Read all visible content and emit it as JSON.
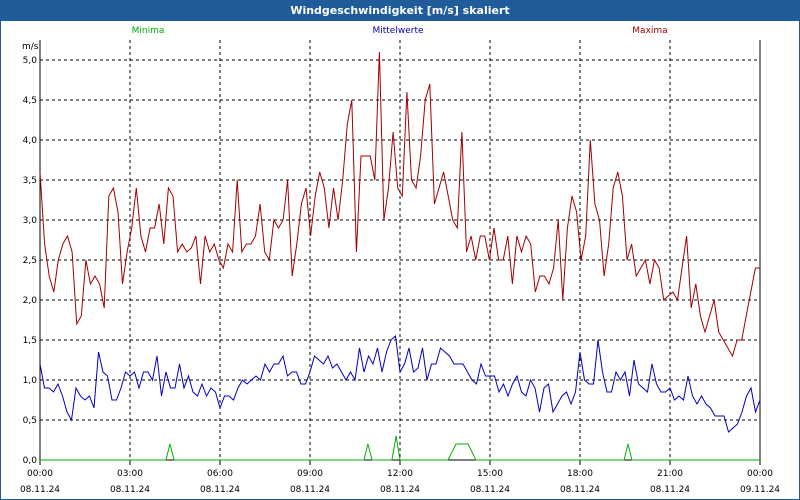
{
  "title": "Windgeschwindigkeit [m/s] skaliert",
  "chart_data": {
    "type": "line",
    "ylabel": "m/s",
    "ylim": [
      0,
      5.25
    ],
    "yticks": [
      "0,0",
      "0,5",
      "1,0",
      "1,5",
      "2,0",
      "2,5",
      "3,0",
      "3,5",
      "4,0",
      "4,5",
      "5,0"
    ],
    "ytick_values": [
      0,
      0.5,
      1.0,
      1.5,
      2.0,
      2.5,
      3.0,
      3.5,
      4.0,
      4.5,
      5.0
    ],
    "xticks": [
      {
        "time": "00:00",
        "date": "08.11.24",
        "hour": 0
      },
      {
        "time": "03:00",
        "date": "08.11.24",
        "hour": 3
      },
      {
        "time": "06:00",
        "date": "08.11.24",
        "hour": 6
      },
      {
        "time": "09:00",
        "date": "08.11.24",
        "hour": 9
      },
      {
        "time": "12:00",
        "date": "08.11.24",
        "hour": 12
      },
      {
        "time": "15:00",
        "date": "08.11.24",
        "hour": 15
      },
      {
        "time": "18:00",
        "date": "08.11.24",
        "hour": 18
      },
      {
        "time": "21:00",
        "date": "08.11.24",
        "hour": 21
      },
      {
        "time": "00:00",
        "date": "09.11.24",
        "hour": 24
      }
    ],
    "grid": true,
    "legend": "top",
    "series": [
      {
        "name": "Minima",
        "color": "#00b000",
        "points": [
          [
            0,
            0
          ],
          [
            4.2,
            0
          ],
          [
            4.33,
            0.2
          ],
          [
            4.47,
            0
          ],
          [
            10.8,
            0
          ],
          [
            10.93,
            0.2
          ],
          [
            11.07,
            0
          ],
          [
            11.73,
            0
          ],
          [
            11.87,
            0.3
          ],
          [
            12.0,
            0
          ],
          [
            13.6,
            0
          ],
          [
            13.87,
            0.2
          ],
          [
            14.27,
            0.2
          ],
          [
            14.53,
            0
          ],
          [
            19.47,
            0
          ],
          [
            19.6,
            0.2
          ],
          [
            19.73,
            0
          ],
          [
            24,
            0
          ]
        ]
      },
      {
        "name": "Mittelwerte",
        "color": "#0000c0",
        "values": [
          1.2,
          0.9,
          0.9,
          0.85,
          0.95,
          0.8,
          0.6,
          0.5,
          0.9,
          0.8,
          0.75,
          0.8,
          0.65,
          1.35,
          1.1,
          1.05,
          0.75,
          0.75,
          0.9,
          1.1,
          1.05,
          1.1,
          0.9,
          1.1,
          1.1,
          1.0,
          1.3,
          0.8,
          1.1,
          0.9,
          0.9,
          1.2,
          0.9,
          1.05,
          0.85,
          0.8,
          0.95,
          0.8,
          0.9,
          0.85,
          0.65,
          0.8,
          0.8,
          0.75,
          0.9,
          1.0,
          0.95,
          1.0,
          1.05,
          1.0,
          1.2,
          1.1,
          1.2,
          1.2,
          1.3,
          1.05,
          1.1,
          1.1,
          0.95,
          0.95,
          1.1,
          1.3,
          1.25,
          1.2,
          1.3,
          1.15,
          1.2,
          1.1,
          1.0,
          1.1,
          1.0,
          1.4,
          1.1,
          1.3,
          1.2,
          1.4,
          1.1,
          1.35,
          1.5,
          1.55,
          1.1,
          1.2,
          1.4,
          1.1,
          1.15,
          1.4,
          1.0,
          1.2,
          1.2,
          1.4,
          1.35,
          1.3,
          1.2,
          1.2,
          1.2,
          1.1,
          1.0,
          0.95,
          1.2,
          1.05,
          1.05,
          1.05,
          0.85,
          0.95,
          0.8,
          0.95,
          1.05,
          0.85,
          0.8,
          1.0,
          0.9,
          0.6,
          0.9,
          0.95,
          0.6,
          0.7,
          0.8,
          0.85,
          0.7,
          0.85,
          1.35,
          1.0,
          0.95,
          0.95,
          1.5,
          1.1,
          0.85,
          0.85,
          1.1,
          1.0,
          1.1,
          0.8,
          1.25,
          0.95,
          0.9,
          0.85,
          1.2,
          0.95,
          0.85,
          0.85,
          0.9,
          0.75,
          0.8,
          0.75,
          1.05,
          0.8,
          0.7,
          0.8,
          0.7,
          0.65,
          0.55,
          0.55,
          0.55,
          0.35,
          0.4,
          0.45,
          0.6,
          0.8,
          0.9,
          0.6,
          0.75
        ]
      },
      {
        "name": "Maxima",
        "color": "#a00000",
        "values": [
          3.6,
          2.7,
          2.3,
          2.1,
          2.5,
          2.7,
          2.8,
          2.6,
          1.7,
          1.8,
          2.5,
          2.2,
          2.3,
          2.2,
          1.9,
          3.3,
          3.4,
          3.1,
          2.2,
          2.6,
          2.9,
          3.4,
          2.8,
          2.6,
          2.9,
          2.9,
          3.2,
          2.7,
          3.4,
          3.3,
          2.6,
          2.7,
          2.6,
          2.65,
          2.8,
          2.2,
          2.8,
          2.6,
          2.7,
          2.5,
          2.4,
          2.7,
          2.6,
          3.5,
          2.6,
          2.7,
          2.7,
          2.8,
          3.2,
          2.6,
          2.5,
          3.0,
          2.9,
          3.0,
          3.5,
          2.3,
          2.7,
          3.2,
          3.4,
          2.8,
          3.3,
          3.6,
          3.4,
          2.9,
          3.4,
          3.0,
          3.5,
          4.2,
          4.5,
          2.6,
          3.8,
          3.8,
          3.8,
          3.5,
          5.1,
          3.0,
          3.4,
          4.1,
          3.4,
          3.3,
          4.6,
          3.5,
          3.4,
          3.8,
          4.5,
          4.7,
          3.2,
          3.4,
          3.6,
          3.3,
          3.0,
          2.9,
          4.1,
          2.6,
          2.8,
          2.5,
          2.8,
          2.8,
          2.5,
          2.9,
          2.5,
          2.5,
          2.8,
          2.2,
          2.8,
          2.6,
          2.8,
          2.7,
          2.1,
          2.3,
          2.3,
          2.2,
          2.4,
          3.0,
          2.0,
          2.9,
          3.3,
          3.1,
          2.5,
          2.8,
          4.0,
          3.2,
          3.0,
          2.3,
          2.7,
          3.4,
          3.6,
          3.3,
          2.5,
          2.7,
          2.3,
          2.4,
          2.5,
          2.2,
          2.5,
          2.4,
          2.0,
          2.05,
          2.1,
          2.0,
          2.4,
          2.8,
          1.9,
          2.2,
          1.8,
          1.6,
          1.8,
          2.0,
          1.6,
          1.5,
          1.4,
          1.3,
          1.5,
          1.5,
          1.8,
          2.1,
          2.4,
          2.4
        ]
      }
    ]
  }
}
